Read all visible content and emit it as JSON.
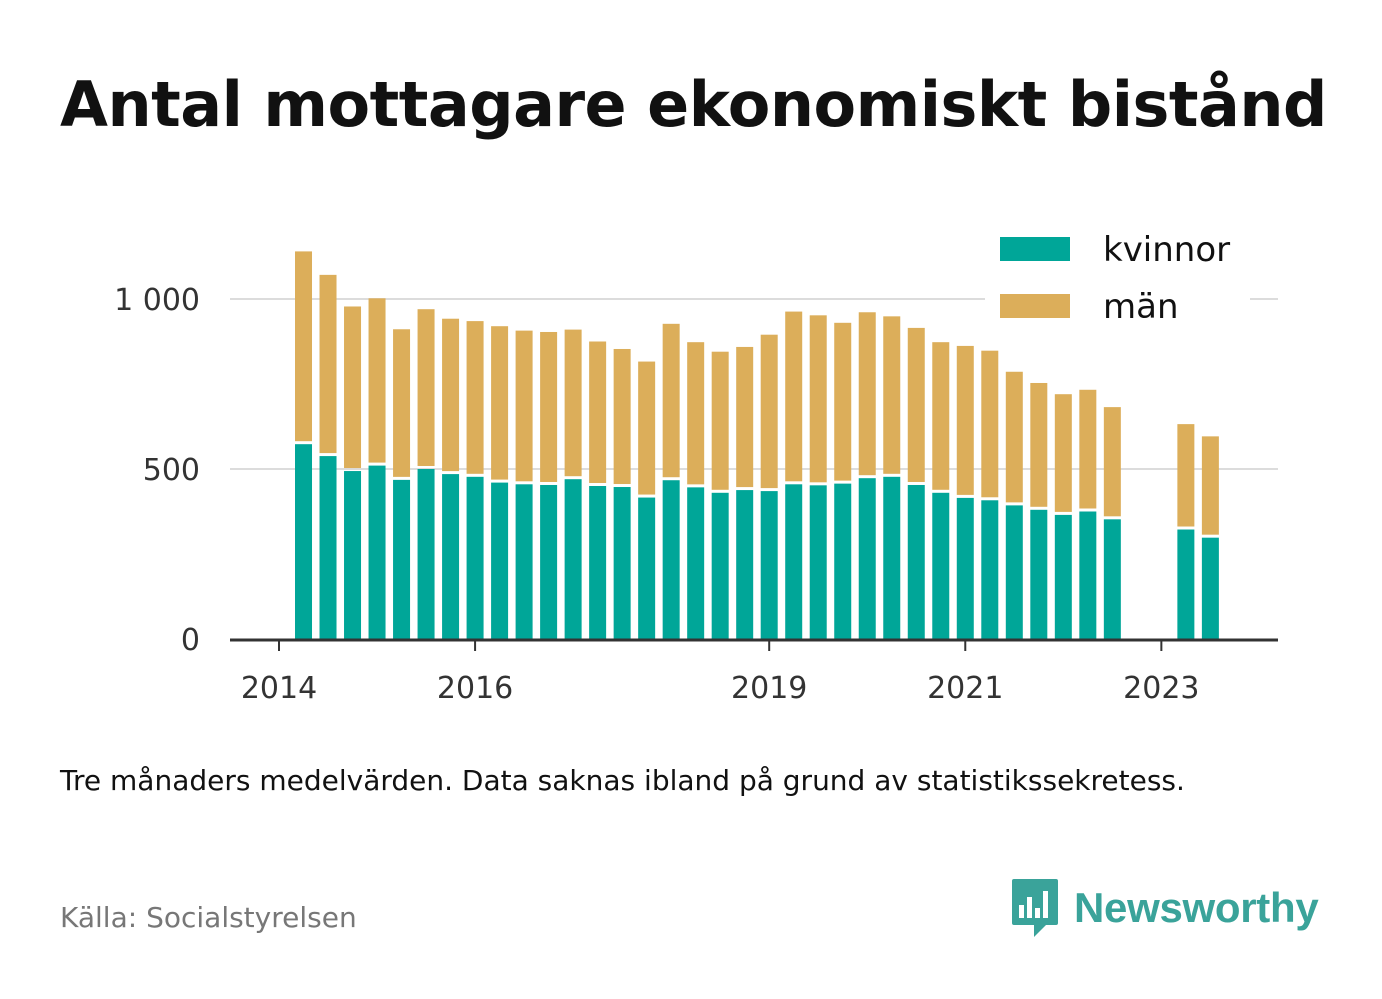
{
  "title": "Antal mottagare ekonomiskt bistånd",
  "note": "Tre månaders medelvärden. Data saknas ibland på grund av statistikssekretess.",
  "source": "Källa: Socialstyrelsen",
  "brand": {
    "name": "Newsworthy",
    "icon": "bar-chart-speech-bubble-icon",
    "color": "#3aa39a"
  },
  "chart_data": {
    "type": "bar",
    "stacked": true,
    "x": [
      "2014-04",
      "2014-07",
      "2014-10",
      "2015-01",
      "2015-04",
      "2015-07",
      "2015-10",
      "2016-01",
      "2016-04",
      "2016-07",
      "2016-10",
      "2017-01",
      "2017-04",
      "2017-07",
      "2017-10",
      "2018-01",
      "2018-04",
      "2018-07",
      "2018-10",
      "2019-01",
      "2019-04",
      "2019-07",
      "2019-10",
      "2020-01",
      "2020-04",
      "2020-07",
      "2020-10",
      "2021-01",
      "2021-04",
      "2021-07",
      "2021-10",
      "2022-01",
      "2022-04",
      "2022-07",
      "2022-10",
      "2023-01",
      "2023-04",
      "2023-07"
    ],
    "series": [
      {
        "name": "kvinnor",
        "color": "#00a698",
        "values": [
          573,
          538,
          494,
          510,
          468,
          500,
          485,
          477,
          460,
          455,
          453,
          470,
          450,
          447,
          416,
          467,
          446,
          430,
          438,
          435,
          455,
          452,
          457,
          473,
          477,
          453,
          430,
          415,
          408,
          393,
          380,
          365,
          375,
          352,
          null,
          null,
          322,
          298
        ]
      },
      {
        "name": "män",
        "color": "#dcae5a",
        "values": [
          567,
          533,
          484,
          492,
          443,
          470,
          457,
          458,
          460,
          452,
          450,
          440,
          425,
          406,
          400,
          460,
          427,
          415,
          421,
          460,
          508,
          500,
          473,
          488,
          472,
          462,
          443,
          447,
          440,
          393,
          373,
          355,
          358,
          330,
          null,
          null,
          310,
          298
        ]
      }
    ],
    "y_ticks": [
      {
        "value": 0,
        "label": "0"
      },
      {
        "value": 500,
        "label": "500"
      },
      {
        "value": 1000,
        "label": "1 000"
      }
    ],
    "x_ticks": [
      {
        "date": "2014-01",
        "label": "2014"
      },
      {
        "date": "2016-01",
        "label": "2016"
      },
      {
        "date": "2019-01",
        "label": "2019"
      },
      {
        "date": "2021-01",
        "label": "2021"
      },
      {
        "date": "2023-01",
        "label": "2023"
      }
    ],
    "ylim": [
      0,
      1200
    ],
    "grid": true,
    "legend": "top-right"
  }
}
